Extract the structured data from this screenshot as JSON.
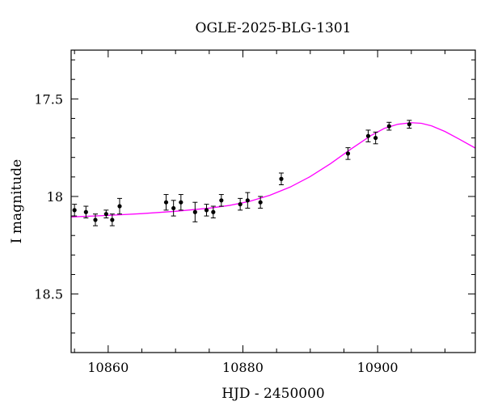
{
  "chart_data": {
    "type": "scatter",
    "title": "OGLE-2025-BLG-1301",
    "xlabel": "HJD - 2450000",
    "ylabel": "I magnitude",
    "xlim": [
      10854.5,
      10914.5
    ],
    "ylim": [
      18.8,
      17.25
    ],
    "y_inverted": true,
    "grid": false,
    "x_ticks": [
      10860,
      10880,
      10900
    ],
    "y_ticks": [
      17.5,
      18,
      18.5
    ],
    "x_tick_labels": [
      "10860",
      "10880",
      "10900"
    ],
    "y_tick_labels": [
      "17.5",
      "18",
      "18.5"
    ],
    "x_minor_step": 5,
    "y_minor_step": 0.1,
    "series": [
      {
        "kind": "points_with_errorbars",
        "color": "#000000",
        "points": [
          {
            "x": 10855.0,
            "y": 18.07,
            "err": 0.03
          },
          {
            "x": 10856.7,
            "y": 18.08,
            "err": 0.03
          },
          {
            "x": 10858.1,
            "y": 18.12,
            "err": 0.03
          },
          {
            "x": 10859.7,
            "y": 18.09,
            "err": 0.02
          },
          {
            "x": 10860.6,
            "y": 18.12,
            "err": 0.03
          },
          {
            "x": 10861.7,
            "y": 18.05,
            "err": 0.04
          },
          {
            "x": 10868.6,
            "y": 18.03,
            "err": 0.04
          },
          {
            "x": 10869.7,
            "y": 18.06,
            "err": 0.04
          },
          {
            "x": 10870.8,
            "y": 18.03,
            "err": 0.04
          },
          {
            "x": 10872.9,
            "y": 18.08,
            "err": 0.05
          },
          {
            "x": 10874.6,
            "y": 18.07,
            "err": 0.03
          },
          {
            "x": 10875.6,
            "y": 18.08,
            "err": 0.03
          },
          {
            "x": 10876.8,
            "y": 18.02,
            "err": 0.03
          },
          {
            "x": 10879.6,
            "y": 18.04,
            "err": 0.03
          },
          {
            "x": 10880.7,
            "y": 18.02,
            "err": 0.04
          },
          {
            "x": 10882.6,
            "y": 18.03,
            "err": 0.03
          },
          {
            "x": 10885.7,
            "y": 17.91,
            "err": 0.03
          },
          {
            "x": 10895.6,
            "y": 17.78,
            "err": 0.03
          },
          {
            "x": 10898.6,
            "y": 17.69,
            "err": 0.03
          },
          {
            "x": 10899.7,
            "y": 17.7,
            "err": 0.03
          },
          {
            "x": 10901.7,
            "y": 17.64,
            "err": 0.02
          },
          {
            "x": 10904.7,
            "y": 17.63,
            "err": 0.02
          }
        ]
      },
      {
        "kind": "model_curve",
        "color": "#ff00ff",
        "x": [
          10854.5,
          10860,
          10865,
          10870,
          10875,
          10878,
          10881,
          10884,
          10887,
          10890,
          10893,
          10896,
          10899,
          10901,
          10903,
          10905,
          10906.5,
          10908,
          10910,
          10912,
          10914.5
        ],
        "y": [
          18.105,
          18.097,
          18.088,
          18.076,
          18.06,
          18.046,
          18.025,
          17.994,
          17.952,
          17.898,
          17.832,
          17.758,
          17.688,
          17.651,
          17.63,
          17.622,
          17.625,
          17.638,
          17.667,
          17.704,
          17.752
        ]
      }
    ]
  }
}
